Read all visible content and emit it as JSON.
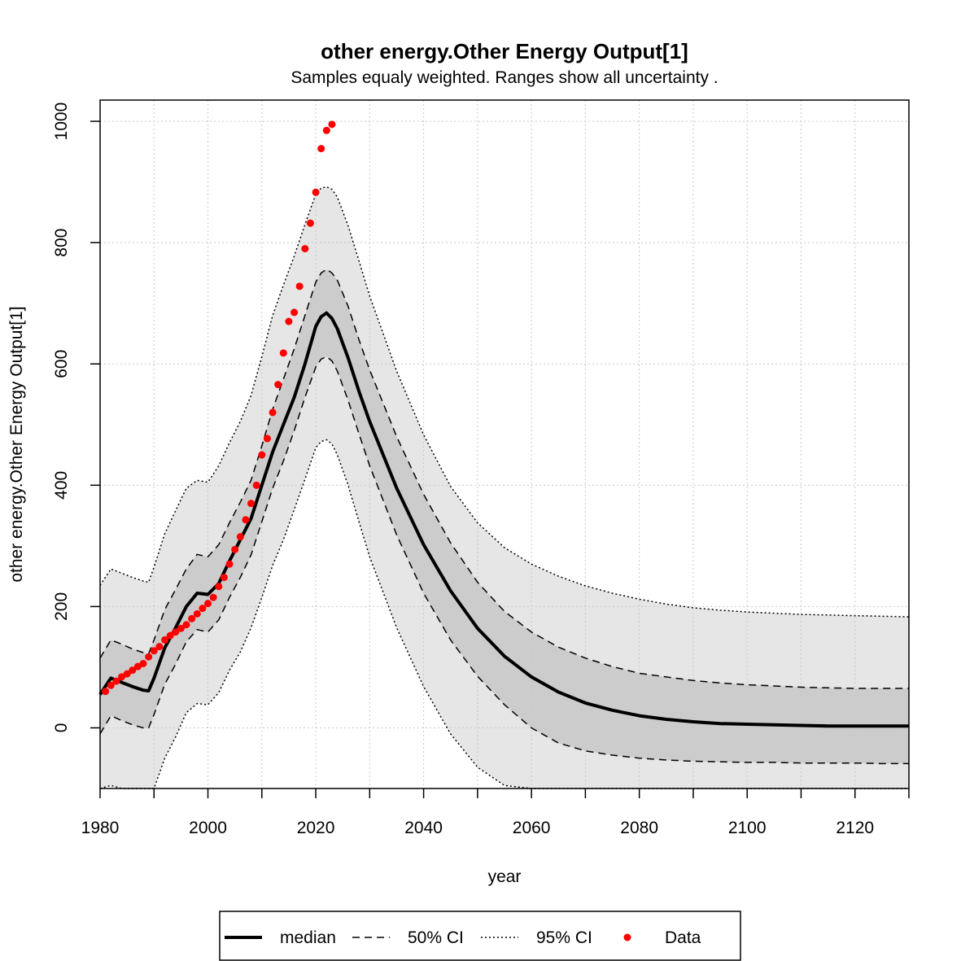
{
  "chart_data": {
    "type": "line",
    "title": "other energy.Other Energy Output[1]",
    "subtitle": "Samples equaly weighted. Ranges show  all uncertainty .",
    "xlabel": "year",
    "ylabel": "other energy.Other Energy Output[1]",
    "xlim": [
      1980,
      2130
    ],
    "ylim": [
      -100,
      1035
    ],
    "x_ticks": [
      1980,
      2000,
      2020,
      2040,
      2060,
      2080,
      2100,
      2120
    ],
    "y_ticks": [
      0,
      200,
      400,
      600,
      800,
      1000
    ],
    "grid": true,
    "legend_position": "bottom",
    "x": [
      1980,
      1982,
      1984,
      1986,
      1988,
      1989,
      1990,
      1992,
      1994,
      1996,
      1998,
      2000,
      2002,
      2004,
      2006,
      2008,
      2010,
      2012,
      2014,
      2016,
      2018,
      2020,
      2021,
      2022,
      2023,
      2024,
      2026,
      2028,
      2030,
      2035,
      2040,
      2045,
      2050,
      2055,
      2060,
      2065,
      2070,
      2075,
      2080,
      2085,
      2090,
      2095,
      2100,
      2105,
      2110,
      2115,
      2120,
      2125,
      2130
    ],
    "series": [
      {
        "name": "median",
        "style": "solid",
        "values": [
          55,
          82,
          75,
          68,
          62,
          61,
          82,
          132,
          165,
          200,
          222,
          220,
          238,
          275,
          310,
          345,
          400,
          455,
          500,
          545,
          600,
          662,
          678,
          684,
          675,
          658,
          610,
          555,
          505,
          395,
          302,
          226,
          164,
          118,
          84,
          59,
          41,
          29,
          20,
          14,
          10,
          7,
          6,
          5,
          4,
          3,
          3,
          3,
          3
        ]
      },
      {
        "name": "50% CI upper",
        "style": "dashed",
        "values": [
          115,
          145,
          138,
          130,
          124,
          122,
          145,
          195,
          228,
          262,
          286,
          282,
          302,
          338,
          372,
          408,
          465,
          525,
          575,
          625,
          680,
          735,
          750,
          756,
          750,
          738,
          695,
          640,
          590,
          480,
          385,
          305,
          240,
          192,
          158,
          133,
          115,
          101,
          90,
          84,
          78,
          74,
          71,
          69,
          67,
          66,
          65,
          65,
          65
        ]
      },
      {
        "name": "50% CI lower",
        "style": "dashed",
        "values": [
          -10,
          20,
          12,
          5,
          0,
          0,
          22,
          72,
          105,
          142,
          162,
          158,
          178,
          215,
          248,
          285,
          340,
          395,
          440,
          490,
          545,
          595,
          608,
          612,
          605,
          588,
          540,
          485,
          432,
          318,
          222,
          145,
          85,
          38,
          0,
          -25,
          -38,
          -45,
          -50,
          -53,
          -55,
          -56,
          -57,
          -57,
          -58,
          -58,
          -58,
          -59,
          -59
        ]
      },
      {
        "name": "95% CI upper",
        "style": "dotted",
        "values": [
          235,
          262,
          255,
          248,
          242,
          240,
          265,
          320,
          358,
          395,
          408,
          405,
          432,
          470,
          505,
          548,
          612,
          680,
          730,
          778,
          830,
          880,
          890,
          892,
          888,
          875,
          828,
          770,
          712,
          588,
          483,
          398,
          338,
          297,
          270,
          250,
          234,
          222,
          212,
          204,
          198,
          194,
          191,
          189,
          187,
          186,
          185,
          184,
          183
        ]
      },
      {
        "name": "95% CI lower",
        "style": "dotted",
        "values": [
          -130,
          -95,
          -105,
          -112,
          -118,
          -120,
          -100,
          -50,
          -15,
          25,
          40,
          38,
          58,
          95,
          125,
          165,
          215,
          268,
          310,
          360,
          410,
          462,
          472,
          475,
          468,
          450,
          400,
          340,
          282,
          165,
          68,
          -10,
          -65,
          -95,
          -100,
          -110,
          -120,
          -130,
          -135,
          -140,
          -145,
          -148,
          -150,
          -152,
          -153,
          -154,
          -155,
          -155,
          -156
        ]
      }
    ],
    "data_points": {
      "name": "Data",
      "x": [
        1981,
        1982,
        1983,
        1984,
        1985,
        1986,
        1987,
        1988,
        1989,
        1990,
        1991,
        1992,
        1993,
        1994,
        1995,
        1996,
        1997,
        1998,
        1999,
        2000,
        2001,
        2002,
        2003,
        2004,
        2005,
        2006,
        2007,
        2008,
        2009,
        2010,
        2011,
        2012,
        2013,
        2014,
        2015,
        2016,
        2017,
        2018,
        2019,
        2020,
        2021,
        2022,
        2023
      ],
      "y": [
        60,
        70,
        77,
        84,
        89,
        95,
        101,
        106,
        117,
        127,
        134,
        145,
        152,
        158,
        164,
        170,
        180,
        188,
        197,
        205,
        215,
        233,
        248,
        270,
        294,
        315,
        343,
        370,
        400,
        450,
        477,
        520,
        566,
        618,
        670,
        685,
        728,
        790,
        832,
        883,
        955,
        985,
        995
      ]
    },
    "legend": {
      "median_label": "median",
      "ci50_label": "50% CI",
      "ci95_label": "95% CI",
      "data_label": "Data"
    },
    "colors": {
      "band95": "#e6e6e6",
      "band50": "#cccccc",
      "line": "#000000",
      "data": "#ff0000",
      "grid": "#c8c8c8"
    }
  }
}
